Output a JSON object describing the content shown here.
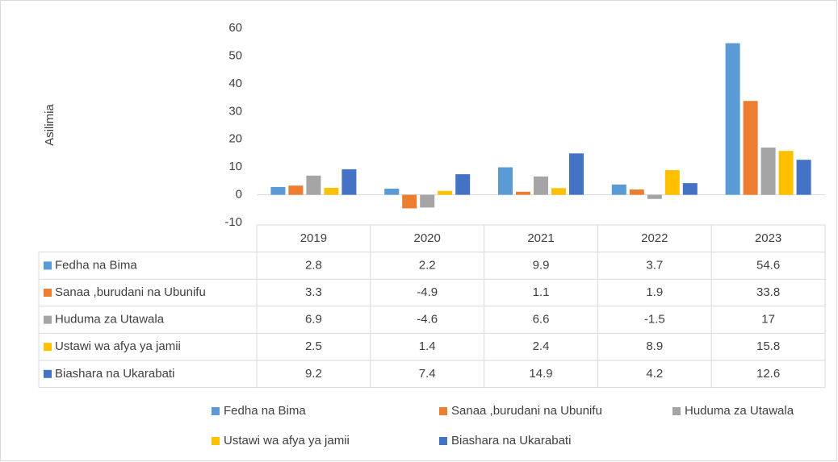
{
  "chart_data": {
    "type": "bar",
    "y_label": "Asilimia",
    "categories": [
      "2019",
      "2020",
      "2021",
      "2022",
      "2023"
    ],
    "series": [
      {
        "name": "Fedha na Bima",
        "color": "#5b9bd5",
        "values": [
          2.8,
          2.2,
          9.9,
          3.7,
          54.6
        ]
      },
      {
        "name": "Sanaa ,burudani na Ubunifu",
        "color": "#ed7d31",
        "values": [
          3.3,
          -4.9,
          1.1,
          1.9,
          33.8
        ]
      },
      {
        "name": "Huduma za Utawala",
        "color": "#a5a5a5",
        "values": [
          6.9,
          -4.6,
          6.6,
          -1.5,
          17
        ]
      },
      {
        "name": "Ustawi wa afya ya jamii",
        "color": "#ffc000",
        "values": [
          2.5,
          1.4,
          2.4,
          8.9,
          15.8
        ]
      },
      {
        "name": "Biashara na Ukarabati",
        "color": "#4472c4",
        "values": [
          9.2,
          7.4,
          14.9,
          4.2,
          12.6
        ]
      }
    ],
    "ylim": [
      -10,
      60
    ],
    "yticks": [
      -10,
      0,
      10,
      20,
      30,
      40,
      50,
      60
    ]
  }
}
